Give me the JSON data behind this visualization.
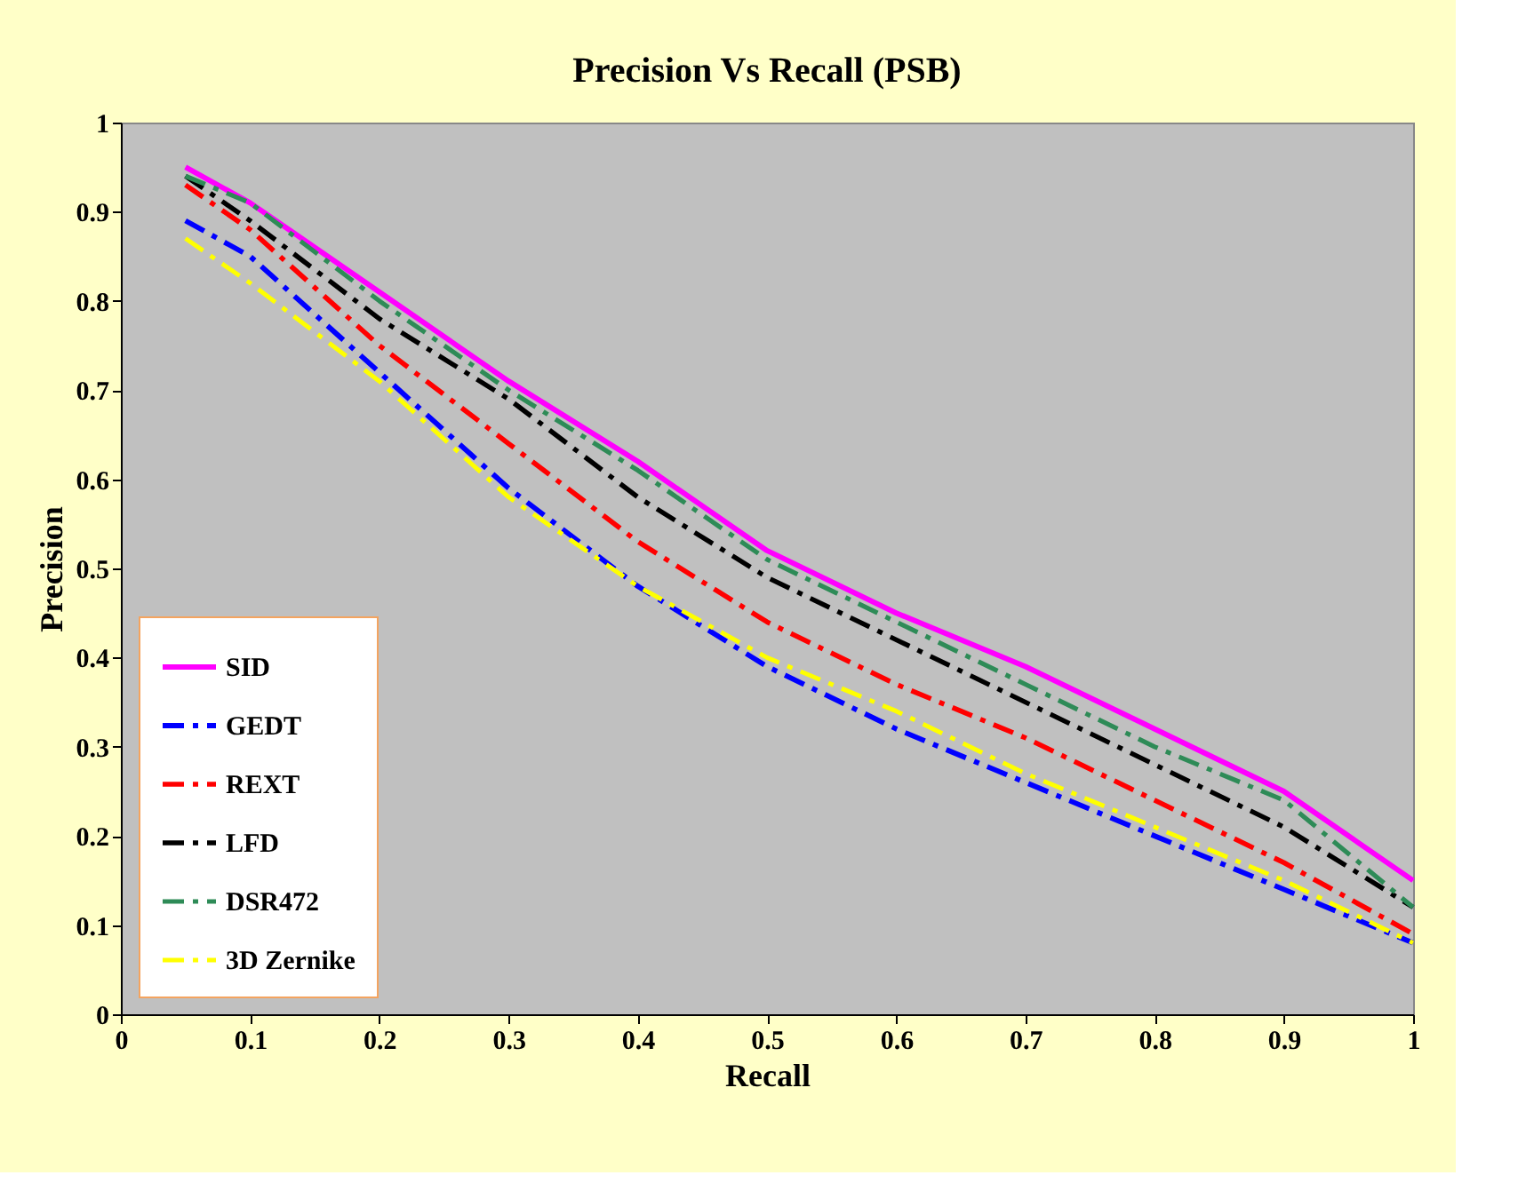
{
  "chart_data": {
    "type": "line",
    "title": "Precision Vs Recall (PSB)",
    "xlabel": "Recall",
    "ylabel": "Precision",
    "x": [
      0.05,
      0.1,
      0.2,
      0.3,
      0.4,
      0.5,
      0.6,
      0.7,
      0.8,
      0.9,
      1.0
    ],
    "series": [
      {
        "name": "SID",
        "color": "#ff00ff",
        "line_style": "solid",
        "values": [
          0.95,
          0.91,
          0.81,
          0.71,
          0.62,
          0.52,
          0.45,
          0.39,
          0.32,
          0.25,
          0.15
        ]
      },
      {
        "name": "GEDT",
        "color": "#0000ff",
        "line_style": "dashed",
        "values": [
          0.89,
          0.85,
          0.72,
          0.59,
          0.48,
          0.39,
          0.32,
          0.26,
          0.2,
          0.14,
          0.08
        ]
      },
      {
        "name": "REXT",
        "color": "#ff0000",
        "line_style": "dashed",
        "values": [
          0.93,
          0.88,
          0.75,
          0.64,
          0.53,
          0.44,
          0.37,
          0.31,
          0.24,
          0.17,
          0.09
        ]
      },
      {
        "name": "LFD",
        "color": "#000000",
        "line_style": "dashed",
        "values": [
          0.94,
          0.89,
          0.78,
          0.69,
          0.58,
          0.49,
          0.42,
          0.35,
          0.28,
          0.21,
          0.12
        ]
      },
      {
        "name": "DSR472",
        "color": "#2e8b57",
        "line_style": "dashed",
        "values": [
          0.94,
          0.91,
          0.8,
          0.7,
          0.61,
          0.51,
          0.44,
          0.37,
          0.3,
          0.24,
          0.12
        ]
      },
      {
        "name": "3D Zernike",
        "color": "#ffff00",
        "line_style": "dashed",
        "values": [
          0.87,
          0.82,
          0.71,
          0.58,
          0.48,
          0.4,
          0.34,
          0.27,
          0.21,
          0.15,
          0.08
        ]
      }
    ],
    "xlim": [
      0,
      1
    ],
    "xticks": [
      0,
      0.1,
      0.2,
      0.3,
      0.4,
      0.5,
      0.6,
      0.7,
      0.8,
      0.9,
      1
    ],
    "ylim": [
      0,
      1
    ],
    "yticks": [
      0,
      0.1,
      0.2,
      0.3,
      0.4,
      0.5,
      0.6,
      0.7,
      0.8,
      0.9,
      1
    ],
    "grid": false,
    "legend": "bottom left",
    "marker": "none"
  }
}
